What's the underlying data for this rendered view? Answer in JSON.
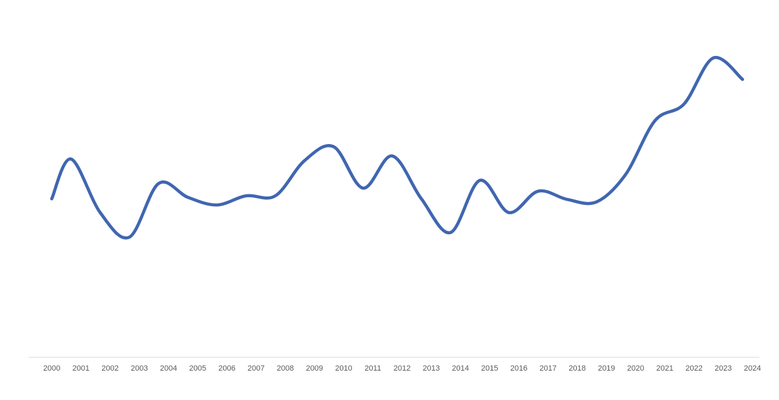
{
  "chart_data": {
    "type": "line",
    "title": "",
    "xlabel": "",
    "ylabel": "",
    "categories": [
      "2000",
      "2001",
      "2002",
      "2003",
      "2004",
      "2005",
      "2006",
      "2007",
      "2008",
      "2009",
      "2010",
      "2011",
      "2012",
      "2013",
      "2014",
      "2015",
      "2016",
      "2017",
      "2018",
      "2019",
      "2020",
      "2021",
      "2022",
      "2023",
      "2024"
    ],
    "series": [
      {
        "name": "",
        "color": "#4066b0",
        "values": [
          {
            "x": 2000.0,
            "y": 0.465
          },
          {
            "x": 2000.66,
            "y": 0.595
          },
          {
            "x": 2001.66,
            "y": 0.42
          },
          {
            "x": 2002.66,
            "y": 0.34
          },
          {
            "x": 2003.66,
            "y": 0.515
          },
          {
            "x": 2004.66,
            "y": 0.47
          },
          {
            "x": 2005.66,
            "y": 0.445
          },
          {
            "x": 2006.66,
            "y": 0.475
          },
          {
            "x": 2007.66,
            "y": 0.475
          },
          {
            "x": 2008.66,
            "y": 0.59
          },
          {
            "x": 2009.66,
            "y": 0.635
          },
          {
            "x": 2010.66,
            "y": 0.5
          },
          {
            "x": 2011.66,
            "y": 0.605
          },
          {
            "x": 2012.66,
            "y": 0.465
          },
          {
            "x": 2013.66,
            "y": 0.355
          },
          {
            "x": 2014.66,
            "y": 0.525
          },
          {
            "x": 2015.66,
            "y": 0.42
          },
          {
            "x": 2016.66,
            "y": 0.49
          },
          {
            "x": 2017.66,
            "y": 0.463
          },
          {
            "x": 2018.66,
            "y": 0.455
          },
          {
            "x": 2019.66,
            "y": 0.545
          },
          {
            "x": 2020.66,
            "y": 0.72
          },
          {
            "x": 2021.66,
            "y": 0.775
          },
          {
            "x": 2022.66,
            "y": 0.925
          },
          {
            "x": 2023.66,
            "y": 0.855
          }
        ]
      }
    ],
    "ylim": [
      0,
      1
    ],
    "y_axis_labels_shown": false,
    "grid": false,
    "legend": "none"
  }
}
